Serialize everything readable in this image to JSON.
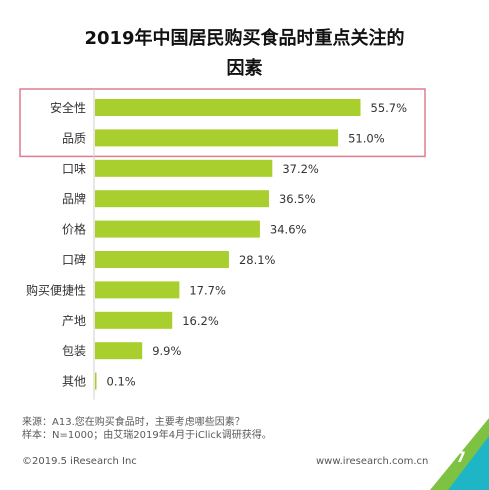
{
  "chart_data": {
    "type": "bar",
    "orientation": "horizontal",
    "title_line1": "2019年中国居民购买食品时重点关注的",
    "title_line2": "因素",
    "categories": [
      "安全性",
      "品质",
      "口味",
      "品牌",
      "价格",
      "口碑",
      "购买便捷性",
      "产地",
      "包装",
      "其他"
    ],
    "values": [
      55.7,
      51.0,
      37.2,
      36.5,
      34.6,
      28.1,
      17.7,
      16.2,
      9.9,
      0.1
    ],
    "value_labels": [
      "55.7%",
      "51.0%",
      "37.2%",
      "36.5%",
      "34.6%",
      "28.1%",
      "17.7%",
      "16.2%",
      "9.9%",
      "0.1%"
    ],
    "xlim": [
      0,
      60
    ],
    "grid": false,
    "highlight_indices": [
      0,
      1
    ]
  },
  "colors": {
    "bar": "#a9cf2e",
    "highlight_box": "#e27a8f",
    "axis": "#cfcfcf",
    "corner_green": "#7dc242",
    "corner_teal": "#1eb6c6"
  },
  "notes": {
    "source": "来源：A13.您在购买食品时，主要考虑哪些因素？",
    "sample": "样本：N=1000；由艾瑞2019年4月于iClick调研获得。"
  },
  "footer": {
    "copyright": "©2019.5 iResearch Inc",
    "website": "www.iresearch.com.cn",
    "page": "7"
  }
}
